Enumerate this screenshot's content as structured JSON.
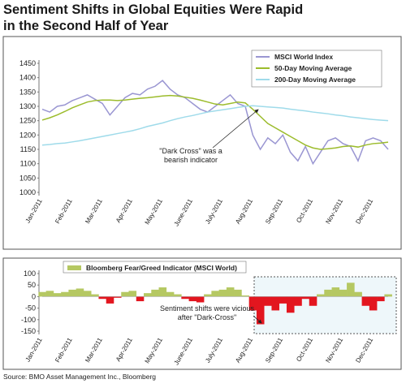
{
  "title": [
    "Sentiment Shifts in Global Equities Were Rapid",
    "in the Second Half of Year"
  ],
  "source": "Source: BMO Asset Management Inc., Bloomberg",
  "chart_data": [
    {
      "type": "line",
      "categories": [
        "Jan-2011",
        null,
        null,
        null,
        "Feb-2011",
        null,
        null,
        null,
        "Mar-2011",
        null,
        null,
        null,
        "Apr-2011",
        null,
        null,
        null,
        "May-2011",
        null,
        null,
        null,
        "June-2011",
        null,
        null,
        null,
        "July-2011",
        null,
        null,
        null,
        "Aug-2011",
        null,
        null,
        null,
        "Sep-2011",
        null,
        null,
        null,
        "Oct-2011",
        null,
        null,
        null,
        "Nov-2011",
        null,
        null,
        null,
        "Dec-2011",
        null,
        null
      ],
      "series": [
        {
          "name": "MSCI World Index",
          "color": "#9a96d2",
          "values": [
            1290,
            1280,
            1300,
            1305,
            1320,
            1330,
            1340,
            1325,
            1310,
            1270,
            1300,
            1330,
            1345,
            1340,
            1360,
            1370,
            1390,
            1360,
            1340,
            1330,
            1310,
            1290,
            1280,
            1300,
            1320,
            1340,
            1310,
            1300,
            1200,
            1150,
            1190,
            1170,
            1200,
            1140,
            1110,
            1160,
            1100,
            1140,
            1180,
            1190,
            1170,
            1160,
            1110,
            1180,
            1190,
            1180,
            1150
          ]
        },
        {
          "name": "50-Day Moving Average",
          "color": "#9cbc2c",
          "values": [
            1252,
            1260,
            1270,
            1282,
            1295,
            1305,
            1315,
            1320,
            1322,
            1322,
            1320,
            1322,
            1325,
            1328,
            1330,
            1333,
            1336,
            1338,
            1336,
            1332,
            1328,
            1322,
            1315,
            1308,
            1305,
            1310,
            1315,
            1312,
            1290,
            1265,
            1240,
            1225,
            1210,
            1195,
            1180,
            1165,
            1155,
            1150,
            1152,
            1155,
            1160,
            1162,
            1158,
            1165,
            1170,
            1172,
            1175
          ]
        },
        {
          "name": "200-Day Moving Average",
          "color": "#9fdbea",
          "values": [
            1165,
            1167,
            1170,
            1172,
            1176,
            1180,
            1185,
            1190,
            1195,
            1200,
            1205,
            1210,
            1215,
            1222,
            1230,
            1236,
            1242,
            1250,
            1257,
            1263,
            1268,
            1274,
            1280,
            1284,
            1288,
            1292,
            1296,
            1300,
            1302,
            1300,
            1298,
            1296,
            1294,
            1290,
            1287,
            1284,
            1280,
            1277,
            1274,
            1270,
            1267,
            1263,
            1260,
            1257,
            1254,
            1252,
            1250
          ]
        }
      ],
      "ylim": [
        1000,
        1450
      ],
      "yticks": [
        1000,
        1050,
        1100,
        1150,
        1200,
        1250,
        1300,
        1350,
        1400,
        1450
      ],
      "annotation": [
        "\"Dark Cross\" was a",
        "bearish indicator"
      ]
    },
    {
      "type": "area",
      "categories": [
        "Jan-2011",
        null,
        null,
        null,
        "Feb-2011",
        null,
        null,
        null,
        "Mar-2011",
        null,
        null,
        null,
        "Apr-2011",
        null,
        null,
        null,
        "May-2011",
        null,
        null,
        null,
        "June-2011",
        null,
        null,
        null,
        "July-2011",
        null,
        null,
        null,
        "Aug-2011",
        null,
        null,
        null,
        "Sep-2011",
        null,
        null,
        null,
        "Oct-2011",
        null,
        null,
        null,
        "Nov-2011",
        null,
        null,
        null,
        "Dec-2011",
        null,
        null
      ],
      "series": [
        {
          "name": "Bloomberg Fear/Greed Indicator (MSCI World)",
          "color": "#b5c862",
          "negative_color": "#e3161f",
          "values": [
            20,
            25,
            15,
            20,
            30,
            35,
            25,
            10,
            -10,
            -30,
            -5,
            20,
            25,
            -20,
            15,
            30,
            40,
            20,
            10,
            -10,
            -20,
            -25,
            10,
            25,
            30,
            40,
            30,
            5,
            -60,
            -120,
            -40,
            -60,
            -30,
            -70,
            -40,
            -10,
            -40,
            10,
            30,
            40,
            30,
            60,
            20,
            -40,
            -60,
            -20,
            10
          ]
        }
      ],
      "ylim": [
        -150,
        100
      ],
      "yticks": [
        -150,
        -100,
        -50,
        0,
        50,
        100
      ],
      "annotation": [
        "Sentiment shifts were vicious",
        "after \"Dark-Cross\""
      ]
    }
  ]
}
